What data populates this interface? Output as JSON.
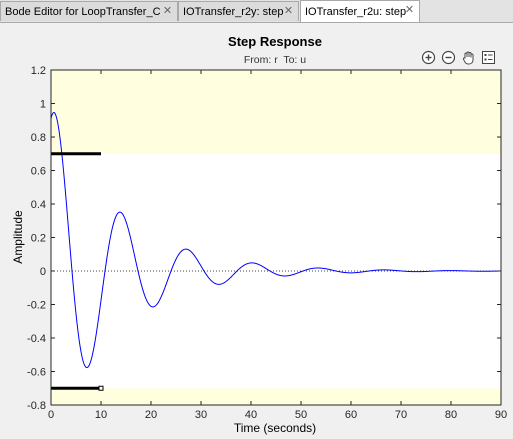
{
  "tabs": [
    {
      "label": "Bode Editor for LoopTransfer_C",
      "active": false
    },
    {
      "label": "IOTransfer_r2y: step",
      "active": false
    },
    {
      "label": "IOTransfer_r2u: step",
      "active": true
    }
  ],
  "toolbar": {
    "icons": [
      "zoom-in-icon",
      "zoom-out-icon",
      "pan-hand-icon",
      "legend-icon"
    ]
  },
  "colors": {
    "response_line": "#0000ff",
    "bound_region": "#ffffe0",
    "bound_line": "#000000"
  },
  "chart_data": {
    "type": "line",
    "title": "Step Response",
    "subtitle": "From: r  To: u",
    "xlabel": "Time (seconds)",
    "ylabel": "Amplitude",
    "xlim": [
      0,
      90
    ],
    "ylim": [
      -0.8,
      1.2
    ],
    "xticks": [
      "0",
      "10",
      "20",
      "30",
      "40",
      "50",
      "60",
      "70",
      "80",
      "90"
    ],
    "yticks": [
      "-0.8",
      "-0.6",
      "-0.4",
      "-0.2",
      "0",
      "0.2",
      "0.4",
      "0.6",
      "0.8",
      "1",
      "1.2"
    ],
    "grid": false,
    "zero_reference": "dotted",
    "response_model": {
      "amplitude": 1.0,
      "decay_rate": 0.075,
      "period": 13.2
    },
    "bounds": {
      "upper": {
        "y": 0.7,
        "t_start": 0,
        "t_end": 10
      },
      "lower": {
        "y": -0.7,
        "t_start": 0,
        "t_end": 10
      }
    },
    "key_points": [
      {
        "x": 1,
        "y": 1.01
      },
      {
        "x": 8,
        "y": -0.62
      },
      {
        "x": 14.6,
        "y": 0.4
      },
      {
        "x": 21.2,
        "y": -0.25
      },
      {
        "x": 27.8,
        "y": 0.17
      },
      {
        "x": 34.4,
        "y": -0.1
      },
      {
        "x": 41,
        "y": 0.06
      },
      {
        "x": 47.6,
        "y": -0.04
      },
      {
        "x": 54.2,
        "y": 0.03
      }
    ]
  }
}
